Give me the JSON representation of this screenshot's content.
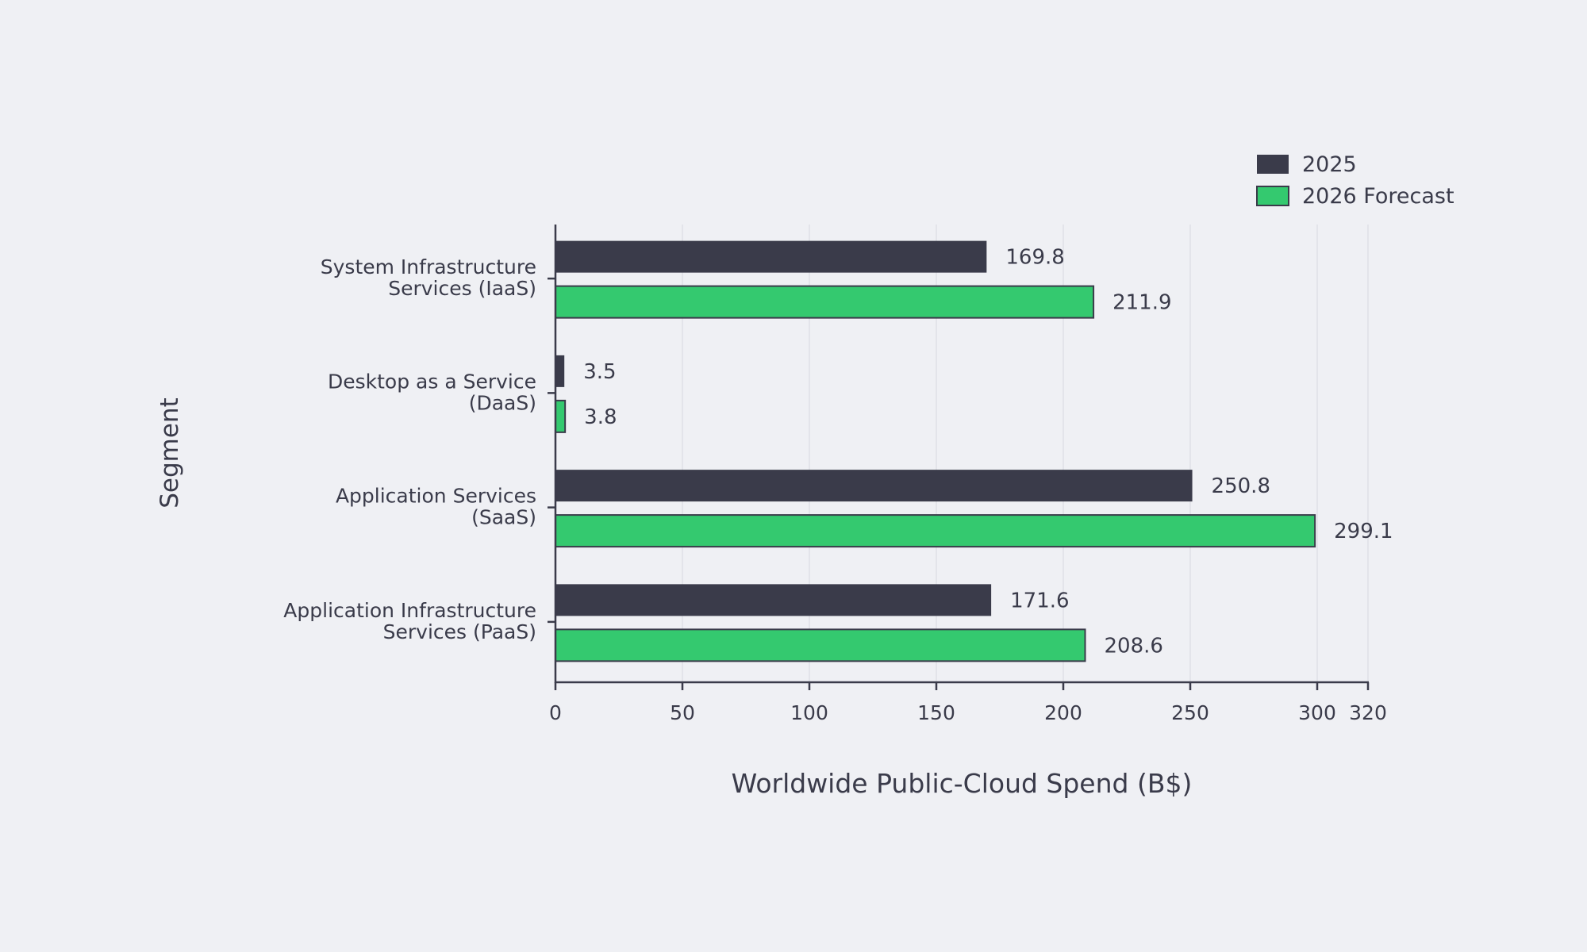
{
  "chart_data": {
    "type": "bar",
    "orientation": "horizontal",
    "categories": [
      [
        "System Infrastructure",
        "Services (IaaS)"
      ],
      [
        "Desktop as a Service",
        "(DaaS)"
      ],
      [
        "Application Services",
        "(SaaS)"
      ],
      [
        "Application Infrastructure",
        "Services (PaaS)"
      ]
    ],
    "series": [
      {
        "name": "2025",
        "values": [
          169.8,
          3.5,
          250.8,
          171.6
        ],
        "color": "#3a3b4a"
      },
      {
        "name": "2026 Forecast",
        "values": [
          211.9,
          3.8,
          299.1,
          208.6
        ],
        "color": "#34c96f"
      }
    ],
    "xlabel": "Worldwide Public-Cloud Spend (B$)",
    "ylabel": "Segment",
    "xlim": [
      0,
      320
    ],
    "xticks": [
      0,
      50,
      100,
      150,
      200,
      250,
      300,
      320
    ],
    "grid": true,
    "legend": "top-right",
    "data_labels": true
  }
}
